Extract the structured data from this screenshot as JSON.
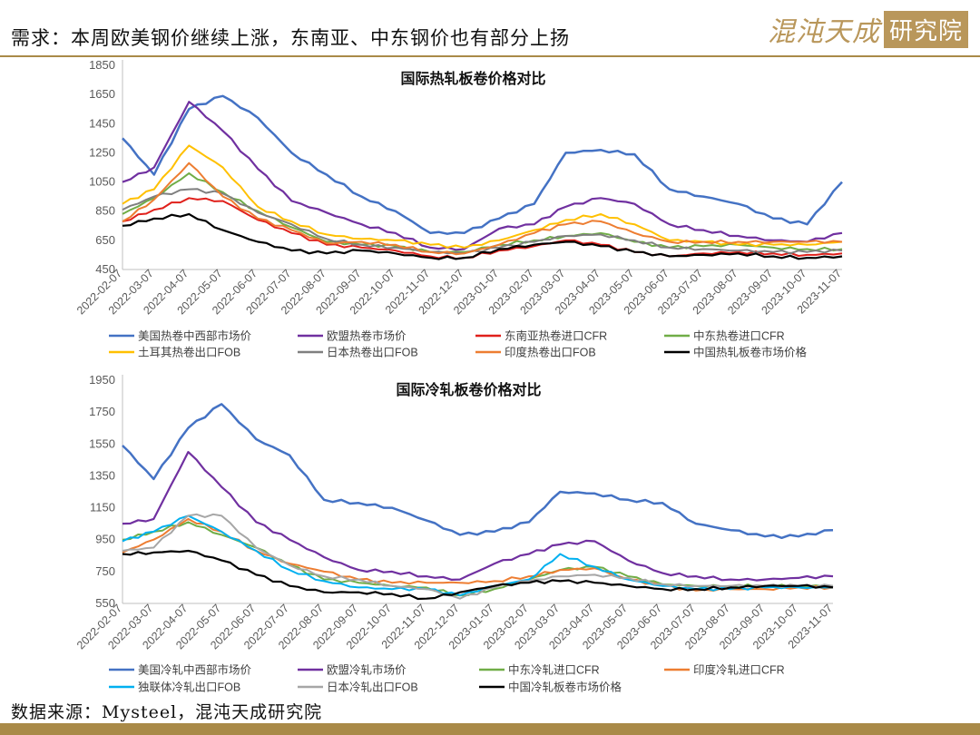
{
  "header": {
    "title": "需求：本周欧美钢价继续上涨，东南亚、中东钢价也有部分上扬",
    "logo_text": "混沌天成",
    "logo_box_text": "研究院"
  },
  "footer": {
    "source": "数据来源：Mysteel，混沌天成研究院"
  },
  "colors": {
    "accent": "#a98a48",
    "logo": "#b9975b"
  },
  "chart_data": [
    {
      "type": "line",
      "title": "国际热轧板卷价格对比",
      "x": [
        "2022-02-07",
        "2022-03-07",
        "2022-04-07",
        "2022-05-07",
        "2022-06-07",
        "2022-07-07",
        "2022-08-07",
        "2022-09-07",
        "2022-10-07",
        "2022-11-07",
        "2022-12-07",
        "2023-01-07",
        "2023-02-07",
        "2023-03-07",
        "2023-04-07",
        "2023-05-07",
        "2023-06-07",
        "2023-07-07",
        "2023-08-07",
        "2023-09-07",
        "2023-10-07",
        "2023-11-07"
      ],
      "ylim": [
        450,
        1850
      ],
      "yticks": [
        450,
        650,
        850,
        1050,
        1250,
        1450,
        1650,
        1850
      ],
      "grid": false,
      "legend_position": "bottom",
      "series": [
        {
          "name": "美国热卷中西部市场价",
          "color": "#4472c4",
          "width": 2.5,
          "values": [
            1350,
            1100,
            1550,
            1640,
            1490,
            1250,
            1100,
            950,
            850,
            700,
            700,
            800,
            900,
            1250,
            1270,
            1240,
            1000,
            950,
            900,
            800,
            760,
            1050
          ]
        },
        {
          "name": "欧盟热卷市场价",
          "color": "#7030a0",
          "width": 2.2,
          "values": [
            1050,
            1150,
            1600,
            1400,
            1140,
            920,
            840,
            760,
            700,
            600,
            590,
            730,
            760,
            880,
            940,
            900,
            760,
            720,
            680,
            650,
            640,
            700
          ]
        },
        {
          "name": "东南亚热卷进口CFR",
          "color": "#e0201b",
          "width": 2,
          "values": [
            780,
            860,
            940,
            920,
            790,
            700,
            620,
            600,
            580,
            540,
            530,
            580,
            610,
            650,
            620,
            570,
            540,
            560,
            570,
            560,
            550,
            560
          ]
        },
        {
          "name": "中东热卷进口CFR",
          "color": "#70ad47",
          "width": 2,
          "values": [
            830,
            940,
            1110,
            980,
            850,
            740,
            640,
            620,
            610,
            570,
            570,
            620,
            650,
            680,
            700,
            640,
            600,
            610,
            620,
            600,
            590,
            590
          ]
        },
        {
          "name": "土耳其热卷出口FOB",
          "color": "#ffc000",
          "width": 2,
          "values": [
            900,
            1000,
            1300,
            1150,
            880,
            780,
            690,
            660,
            650,
            620,
            600,
            650,
            720,
            790,
            830,
            760,
            650,
            640,
            620,
            620,
            620,
            640
          ]
        },
        {
          "name": "日本热卷出口FOB",
          "color": "#7f7f7f",
          "width": 2,
          "values": [
            860,
            950,
            1000,
            970,
            840,
            760,
            660,
            620,
            600,
            570,
            560,
            600,
            640,
            680,
            690,
            650,
            600,
            590,
            580,
            570,
            570,
            580
          ]
        },
        {
          "name": "印度热卷出口FOB",
          "color": "#ed7d31",
          "width": 2,
          "values": [
            780,
            930,
            1180,
            950,
            800,
            720,
            630,
            640,
            620,
            570,
            560,
            620,
            700,
            760,
            780,
            700,
            640,
            640,
            640,
            640,
            640,
            640
          ]
        },
        {
          "name": "中国热轧板卷市场价格",
          "color": "#000000",
          "width": 2.2,
          "values": [
            750,
            800,
            830,
            720,
            640,
            580,
            560,
            580,
            560,
            530,
            530,
            590,
            620,
            640,
            610,
            570,
            540,
            550,
            560,
            540,
            530,
            540
          ]
        }
      ]
    },
    {
      "type": "line",
      "title": "国际冷轧板卷价格对比",
      "x": [
        "2022-02-07",
        "2022-03-07",
        "2022-04-07",
        "2022-05-07",
        "2022-06-07",
        "2022-07-07",
        "2022-08-07",
        "2022-09-07",
        "2022-10-07",
        "2022-11-07",
        "2022-12-07",
        "2023-01-07",
        "2023-02-07",
        "2023-03-07",
        "2023-04-07",
        "2023-05-07",
        "2023-06-07",
        "2023-07-07",
        "2023-08-07",
        "2023-09-07",
        "2023-10-07",
        "2023-11-07"
      ],
      "ylim": [
        550,
        1950
      ],
      "yticks": [
        550,
        750,
        950,
        1150,
        1350,
        1550,
        1750,
        1950
      ],
      "grid": false,
      "legend_position": "bottom",
      "series": [
        {
          "name": "美国冷轧中西部市场价",
          "color": "#4472c4",
          "width": 2.5,
          "values": [
            1540,
            1330,
            1650,
            1800,
            1580,
            1480,
            1200,
            1180,
            1150,
            1070,
            980,
            1000,
            1060,
            1250,
            1240,
            1200,
            1180,
            1050,
            1010,
            970,
            970,
            1010
          ]
        },
        {
          "name": "欧盟冷轧市场价",
          "color": "#7030a0",
          "width": 2.2,
          "values": [
            1050,
            1080,
            1500,
            1280,
            1060,
            950,
            840,
            760,
            750,
            720,
            700,
            800,
            860,
            920,
            940,
            820,
            740,
            720,
            700,
            700,
            710,
            720
          ]
        },
        {
          "name": "中东冷轧进口CFR",
          "color": "#70ad47",
          "width": 2,
          "values": [
            950,
            1000,
            1060,
            980,
            900,
            790,
            700,
            680,
            660,
            650,
            600,
            640,
            700,
            760,
            780,
            720,
            670,
            660,
            660,
            660,
            660,
            660
          ]
        },
        {
          "name": "印度冷轧进口CFR",
          "color": "#ed7d31",
          "width": 2,
          "values": [
            870,
            950,
            1080,
            1000,
            880,
            800,
            750,
            700,
            680,
            680,
            680,
            690,
            720,
            760,
            770,
            700,
            660,
            630,
            640,
            640,
            650,
            650
          ]
        },
        {
          "name": "独联体冷轧出口FOB",
          "color": "#00b0f0",
          "width": 2,
          "values": [
            940,
            1000,
            1100,
            1000,
            880,
            760,
            690,
            650,
            640,
            640,
            600,
            660,
            700,
            860,
            780,
            700,
            660,
            640,
            640,
            650,
            650,
            650
          ]
        },
        {
          "name": "日本冷轧出口FOB",
          "color": "#a6a6a6",
          "width": 2,
          "values": [
            880,
            900,
            1100,
            1100,
            900,
            790,
            720,
            700,
            660,
            640,
            580,
            650,
            690,
            720,
            730,
            710,
            670,
            660,
            660,
            660,
            660,
            660
          ]
        },
        {
          "name": "中国冷轧板卷市场价格",
          "color": "#000000",
          "width": 2.2,
          "values": [
            860,
            870,
            880,
            820,
            730,
            660,
            620,
            620,
            610,
            580,
            620,
            660,
            680,
            690,
            680,
            660,
            640,
            640,
            650,
            660,
            660,
            650
          ]
        }
      ]
    }
  ]
}
